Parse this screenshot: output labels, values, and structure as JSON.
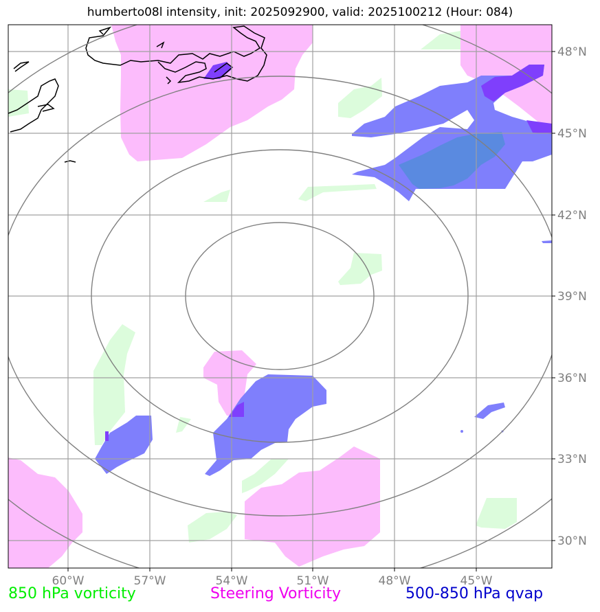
{
  "title": "humberto08l intensity, init: 2025092900, valid: 2025100212 (Hour: 084)",
  "lon_labels": [
    "60°W",
    "57°W",
    "54°W",
    "51°W",
    "48°W",
    "45°W"
  ],
  "lat_labels": [
    "48°N",
    "45°N",
    "42°N",
    "39°N",
    "36°N",
    "33°N",
    "30°N"
  ],
  "legend": {
    "vort850": {
      "label": "850 hPa vorticity",
      "color": "#00ee00"
    },
    "steering": {
      "label": "Steering Vorticity",
      "color": "#ee00ee"
    },
    "qvap": {
      "label": "500-850 hPa qvap",
      "color": "#0000cc"
    }
  },
  "colors": {
    "green_fill": "#dcfcdc",
    "magenta_fill": "#fcbcfc",
    "blue_fill": "#7f7ffc",
    "overlap_fill": "#7f3ffc",
    "grid": "#a0a0a0",
    "range_rings": "#808080",
    "coast": "#000000",
    "tick_text": "#808080"
  }
}
